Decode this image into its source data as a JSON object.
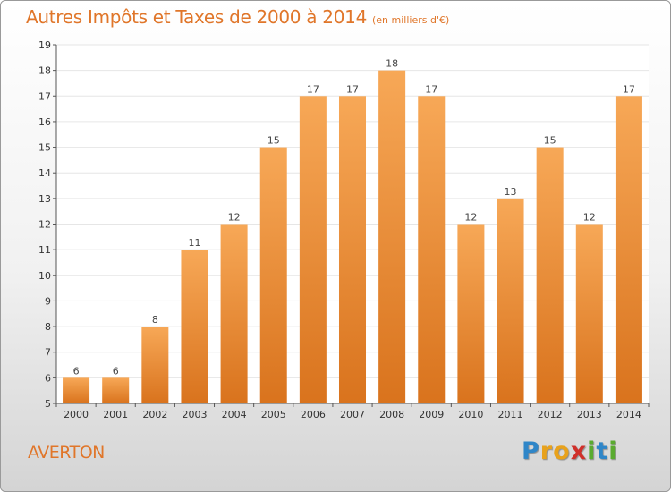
{
  "header": {
    "title": "Autres Impôts et Taxes de 2000 à 2014",
    "unit": "(en milliers d'€)"
  },
  "footer": {
    "location": "AVERTON",
    "logo_letters": [
      "P",
      "r",
      "o",
      "x",
      "i",
      "t",
      "i"
    ]
  },
  "colors": {
    "bar_top": "#f7a857",
    "bar_bottom": "#d9731d",
    "title": "#e0762a",
    "grid": "#e6e6e6"
  },
  "chart_data": {
    "type": "bar",
    "title": "Autres Impôts et Taxes de 2000 à 2014",
    "subtitle": "(en milliers d'€)",
    "xlabel": "",
    "ylabel": "",
    "categories": [
      "2000",
      "2001",
      "2002",
      "2003",
      "2004",
      "2005",
      "2006",
      "2007",
      "2008",
      "2009",
      "2010",
      "2011",
      "2012",
      "2013",
      "2014"
    ],
    "values": [
      6,
      6,
      8,
      11,
      12,
      15,
      17,
      17,
      18,
      17,
      12,
      13,
      15,
      12,
      17
    ],
    "ylim": [
      5,
      19
    ],
    "yticks": [
      5,
      6,
      7,
      8,
      9,
      10,
      11,
      12,
      13,
      14,
      15,
      16,
      17,
      18,
      19
    ],
    "grid": true,
    "data_labels": true
  }
}
